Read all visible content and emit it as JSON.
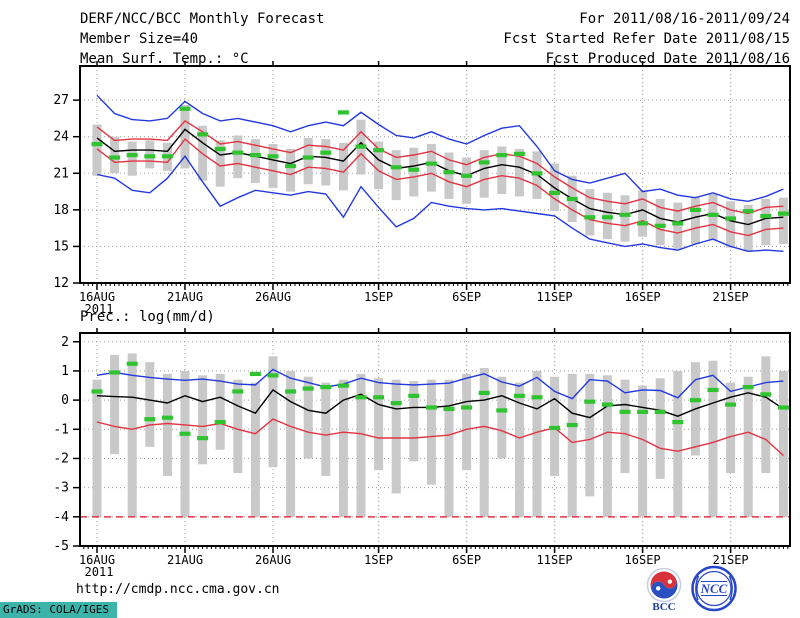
{
  "header": {
    "left": [
      "DERF/NCC/BCC Monthly Forecast",
      "Member Size=40",
      "Mean Surf. Temp.: °C"
    ],
    "right": [
      "For 2011/08/16-2011/09/24",
      "Fcst Started Refer Date 2011/08/15",
      "Fcst Produced Date 2011/08/16"
    ]
  },
  "footer": {
    "url": "http://cmdp.ncc.cma.gov.cn",
    "grads_credit": "GrADS: COLA/IGES",
    "logos": [
      {
        "label": "BCC"
      },
      {
        "label": "NCC"
      }
    ]
  },
  "colors": {
    "blue": "#2239e0",
    "red": "#e23442",
    "black": "#000000",
    "green": "#2fc42f",
    "bar": "#c9c9c9",
    "grid": "#9a9a9a",
    "credit_bg": "#3db4aa"
  },
  "chart_data": [
    {
      "type": "line",
      "title": "Mean Surf. Temp.: °C",
      "n_days": 40,
      "start_date": "16AUG2011",
      "ylim": [
        12,
        29.8
      ],
      "yticks": [
        27,
        24,
        21,
        18,
        15,
        12
      ],
      "x_ticks": [
        {
          "day": 0,
          "label": "16AUG",
          "sublabel": "2011"
        },
        {
          "day": 5,
          "label": "21AUG"
        },
        {
          "day": 10,
          "label": "26AUG"
        },
        {
          "day": 16,
          "label": "1SEP"
        },
        {
          "day": 21,
          "label": "6SEP"
        },
        {
          "day": 26,
          "label": "11SEP"
        },
        {
          "day": 31,
          "label": "16SEP"
        },
        {
          "day": 36,
          "label": "21SEP"
        }
      ],
      "series": [
        {
          "name": "ens-max",
          "color": "blue",
          "style": "line",
          "values": [
            27.4,
            25.9,
            25.4,
            25.3,
            25.5,
            26.9,
            25.9,
            25.3,
            25.5,
            25.2,
            24.9,
            24.4,
            24.9,
            25.2,
            24.9,
            26.0,
            25.0,
            24.1,
            23.9,
            24.4,
            23.8,
            23.4,
            24.1,
            24.7,
            24.9,
            23.2,
            21.2,
            20.5,
            20.2,
            20.6,
            21.0,
            19.5,
            19.7,
            19.2,
            19.0,
            19.4,
            18.9,
            18.7,
            19.1,
            19.7
          ]
        },
        {
          "name": "ens-upper",
          "color": "red",
          "style": "line",
          "values": [
            24.8,
            23.7,
            23.8,
            23.8,
            23.7,
            25.3,
            24.4,
            23.4,
            23.6,
            23.3,
            23.0,
            22.7,
            23.3,
            23.2,
            22.9,
            24.4,
            23.0,
            22.3,
            22.5,
            22.8,
            22.1,
            21.7,
            22.3,
            22.6,
            22.4,
            21.8,
            20.7,
            19.8,
            19.0,
            18.7,
            18.5,
            18.9,
            18.2,
            17.9,
            18.3,
            18.6,
            18.0,
            17.7,
            18.2,
            18.3
          ]
        },
        {
          "name": "ens-mean",
          "color": "black",
          "style": "line",
          "values": [
            23.9,
            22.8,
            22.9,
            22.9,
            22.8,
            24.6,
            23.5,
            22.5,
            22.7,
            22.4,
            22.1,
            21.8,
            22.4,
            22.3,
            22.0,
            23.5,
            22.1,
            21.4,
            21.6,
            21.9,
            21.2,
            20.8,
            21.4,
            21.7,
            21.5,
            20.9,
            19.8,
            18.9,
            18.1,
            17.8,
            17.6,
            18.0,
            17.3,
            17.0,
            17.4,
            17.7,
            17.1,
            16.8,
            17.3,
            17.4
          ]
        },
        {
          "name": "ens-lower",
          "color": "red",
          "style": "line",
          "values": [
            23.0,
            21.9,
            22.0,
            22.0,
            21.9,
            23.8,
            22.6,
            21.6,
            21.8,
            21.5,
            21.2,
            20.9,
            21.5,
            21.4,
            21.1,
            22.6,
            21.2,
            20.5,
            20.7,
            21.0,
            20.3,
            19.9,
            20.5,
            20.8,
            20.6,
            20.0,
            18.9,
            18.0,
            17.2,
            16.9,
            16.7,
            17.1,
            16.4,
            16.1,
            16.5,
            16.8,
            16.2,
            15.9,
            16.4,
            16.5
          ]
        },
        {
          "name": "ens-min",
          "color": "blue",
          "style": "line",
          "values": [
            20.9,
            20.6,
            19.6,
            19.4,
            20.6,
            22.4,
            20.3,
            18.3,
            19.0,
            19.6,
            19.4,
            19.2,
            19.5,
            19.3,
            17.4,
            19.9,
            18.2,
            16.6,
            17.3,
            18.6,
            18.3,
            18.1,
            18.0,
            18.1,
            17.9,
            17.7,
            17.5,
            16.5,
            15.6,
            15.3,
            15.0,
            15.2,
            14.9,
            14.7,
            15.2,
            15.6,
            15.0,
            14.6,
            14.7,
            14.6
          ]
        },
        {
          "name": "obs",
          "color": "green",
          "style": "marks",
          "values": [
            23.4,
            22.3,
            22.5,
            22.4,
            22.4,
            26.3,
            24.2,
            23.0,
            22.7,
            22.5,
            22.4,
            21.6,
            22.3,
            22.7,
            26.0,
            23.2,
            22.9,
            21.5,
            21.3,
            21.8,
            21.1,
            20.8,
            21.9,
            22.5,
            22.6,
            21.0,
            19.4,
            18.9,
            17.4,
            17.4,
            17.6,
            16.9,
            16.7,
            16.9,
            18.0,
            17.6,
            17.3,
            17.9,
            17.5,
            17.7
          ]
        }
      ],
      "bars": {
        "top": [
          25.0,
          24.0,
          23.6,
          23.7,
          23.5,
          26.6,
          24.9,
          23.7,
          24.1,
          23.8,
          23.4,
          23.0,
          23.9,
          23.8,
          23.5,
          25.4,
          23.6,
          22.9,
          23.1,
          23.4,
          22.7,
          22.3,
          22.9,
          23.2,
          23.0,
          22.8,
          21.8,
          20.8,
          19.7,
          19.4,
          19.2,
          19.6,
          18.9,
          18.6,
          19.0,
          19.3,
          18.7,
          18.4,
          18.9,
          19.0
        ],
        "bottom": [
          20.8,
          21.0,
          20.8,
          21.4,
          21.2,
          21.4,
          20.4,
          19.9,
          20.6,
          20.2,
          19.8,
          19.5,
          20.1,
          20.0,
          19.6,
          20.9,
          19.7,
          18.8,
          19.1,
          19.5,
          18.9,
          18.5,
          19.0,
          19.3,
          19.1,
          18.9,
          17.9,
          17.0,
          15.9,
          15.6,
          15.4,
          15.8,
          15.1,
          14.8,
          15.2,
          15.5,
          14.9,
          14.6,
          15.1,
          15.2
        ]
      }
    },
    {
      "type": "line",
      "title": "Prec.: log(mm/d)",
      "n_days": 40,
      "start_date": "16AUG2011",
      "ylim": [
        -5,
        2.3
      ],
      "yticks": [
        2,
        1,
        0,
        -1,
        -2,
        -3,
        -4,
        -5
      ],
      "x_ticks": [
        {
          "day": 0,
          "label": "16AUG",
          "sublabel": "2011"
        },
        {
          "day": 5,
          "label": "21AUG"
        },
        {
          "day": 10,
          "label": "26AUG"
        },
        {
          "day": 16,
          "label": "1SEP"
        },
        {
          "day": 21,
          "label": "6SEP"
        },
        {
          "day": 26,
          "label": "11SEP"
        },
        {
          "day": 31,
          "label": "16SEP"
        },
        {
          "day": 36,
          "label": "21SEP"
        }
      ],
      "series": [
        {
          "name": "ens-max",
          "color": "blue",
          "style": "line",
          "values": [
            0.85,
            0.95,
            0.85,
            0.78,
            0.72,
            0.68,
            0.72,
            0.65,
            0.55,
            0.52,
            1.05,
            0.75,
            0.6,
            0.45,
            0.55,
            0.75,
            0.6,
            0.55,
            0.52,
            0.55,
            0.58,
            0.75,
            0.9,
            0.62,
            0.48,
            0.78,
            0.3,
            0.05,
            0.7,
            0.65,
            0.25,
            0.35,
            0.33,
            0.08,
            0.7,
            0.85,
            0.3,
            0.45,
            0.6,
            0.65
          ]
        },
        {
          "name": "ens-mean",
          "color": "black",
          "style": "line",
          "values": [
            0.15,
            0.12,
            0.1,
            0,
            -0.1,
            0.15,
            -0.05,
            0.1,
            -0.2,
            -0.45,
            0.35,
            -0.05,
            -0.35,
            -0.45,
            0,
            0.2,
            -0.15,
            -0.3,
            -0.25,
            -0.25,
            -0.2,
            -0.05,
            0,
            0.15,
            -0.1,
            -0.3,
            0.05,
            -0.45,
            -0.6,
            -0.2,
            -0.15,
            -0.25,
            -0.35,
            -0.55,
            -0.3,
            -0.1,
            0.1,
            0.25,
            0.1,
            -0.3
          ]
        },
        {
          "name": "ens-lower",
          "color": "red",
          "style": "line",
          "values": [
            -0.75,
            -0.9,
            -1.0,
            -0.85,
            -0.8,
            -0.85,
            -0.9,
            -0.8,
            -1.0,
            -1.15,
            -0.65,
            -0.9,
            -1.1,
            -1.2,
            -1.1,
            -1.15,
            -1.3,
            -1.3,
            -1.3,
            -1.25,
            -1.2,
            -1.0,
            -0.9,
            -1.05,
            -1.3,
            -1.1,
            -0.95,
            -1.45,
            -1.35,
            -1.1,
            -1.15,
            -1.35,
            -1.65,
            -1.75,
            -1.6,
            -1.45,
            -1.25,
            -1.1,
            -1.35,
            -1.9
          ]
        },
        {
          "name": "ens-min-clipped",
          "color": "red",
          "style": "hline",
          "value": -4
        },
        {
          "name": "obs",
          "color": "green",
          "style": "marks",
          "values": [
            0.3,
            0.95,
            1.25,
            -0.65,
            -0.6,
            -1.15,
            -1.3,
            -0.75,
            0.3,
            0.9,
            0.85,
            0.3,
            0.4,
            0.45,
            0.5,
            0.1,
            0.1,
            -0.1,
            0.15,
            -0.25,
            -0.3,
            -0.25,
            0.25,
            -0.35,
            0.15,
            0.1,
            -0.95,
            -0.85,
            -0.05,
            -0.15,
            -0.4,
            -0.4,
            -0.4,
            -0.75,
            0,
            0.35,
            -0.15,
            0.45,
            0.2,
            -0.25
          ]
        }
      ],
      "bars": {
        "top": [
          0.7,
          1.55,
          1.6,
          1.3,
          0.9,
          1.0,
          0.85,
          0.9,
          0.7,
          0.6,
          1.5,
          1.0,
          0.8,
          0.6,
          0.7,
          0.9,
          0.75,
          0.7,
          0.65,
          0.7,
          0.7,
          0.9,
          1.1,
          0.8,
          0.6,
          1.0,
          0.8,
          0.9,
          0.9,
          0.85,
          0.7,
          0.5,
          0.75,
          1.0,
          1.3,
          1.35,
          0.6,
          0.8,
          1.5,
          1.0
        ],
        "bottom": [
          -4,
          -1.85,
          -4,
          -1.6,
          -2.6,
          -4,
          -2.2,
          -1.7,
          -2.5,
          -4,
          -2.3,
          -4,
          -2.0,
          -2.6,
          -4,
          -4,
          -2.4,
          -3.2,
          -2.1,
          -2.9,
          -4,
          -2.4,
          -4,
          -2.0,
          -4,
          -4,
          -2.6,
          -4,
          -3.3,
          -4,
          -2.5,
          -4,
          -2.7,
          -4,
          -1.9,
          -4,
          -2.5,
          -4,
          -2.5,
          -4
        ]
      }
    }
  ]
}
